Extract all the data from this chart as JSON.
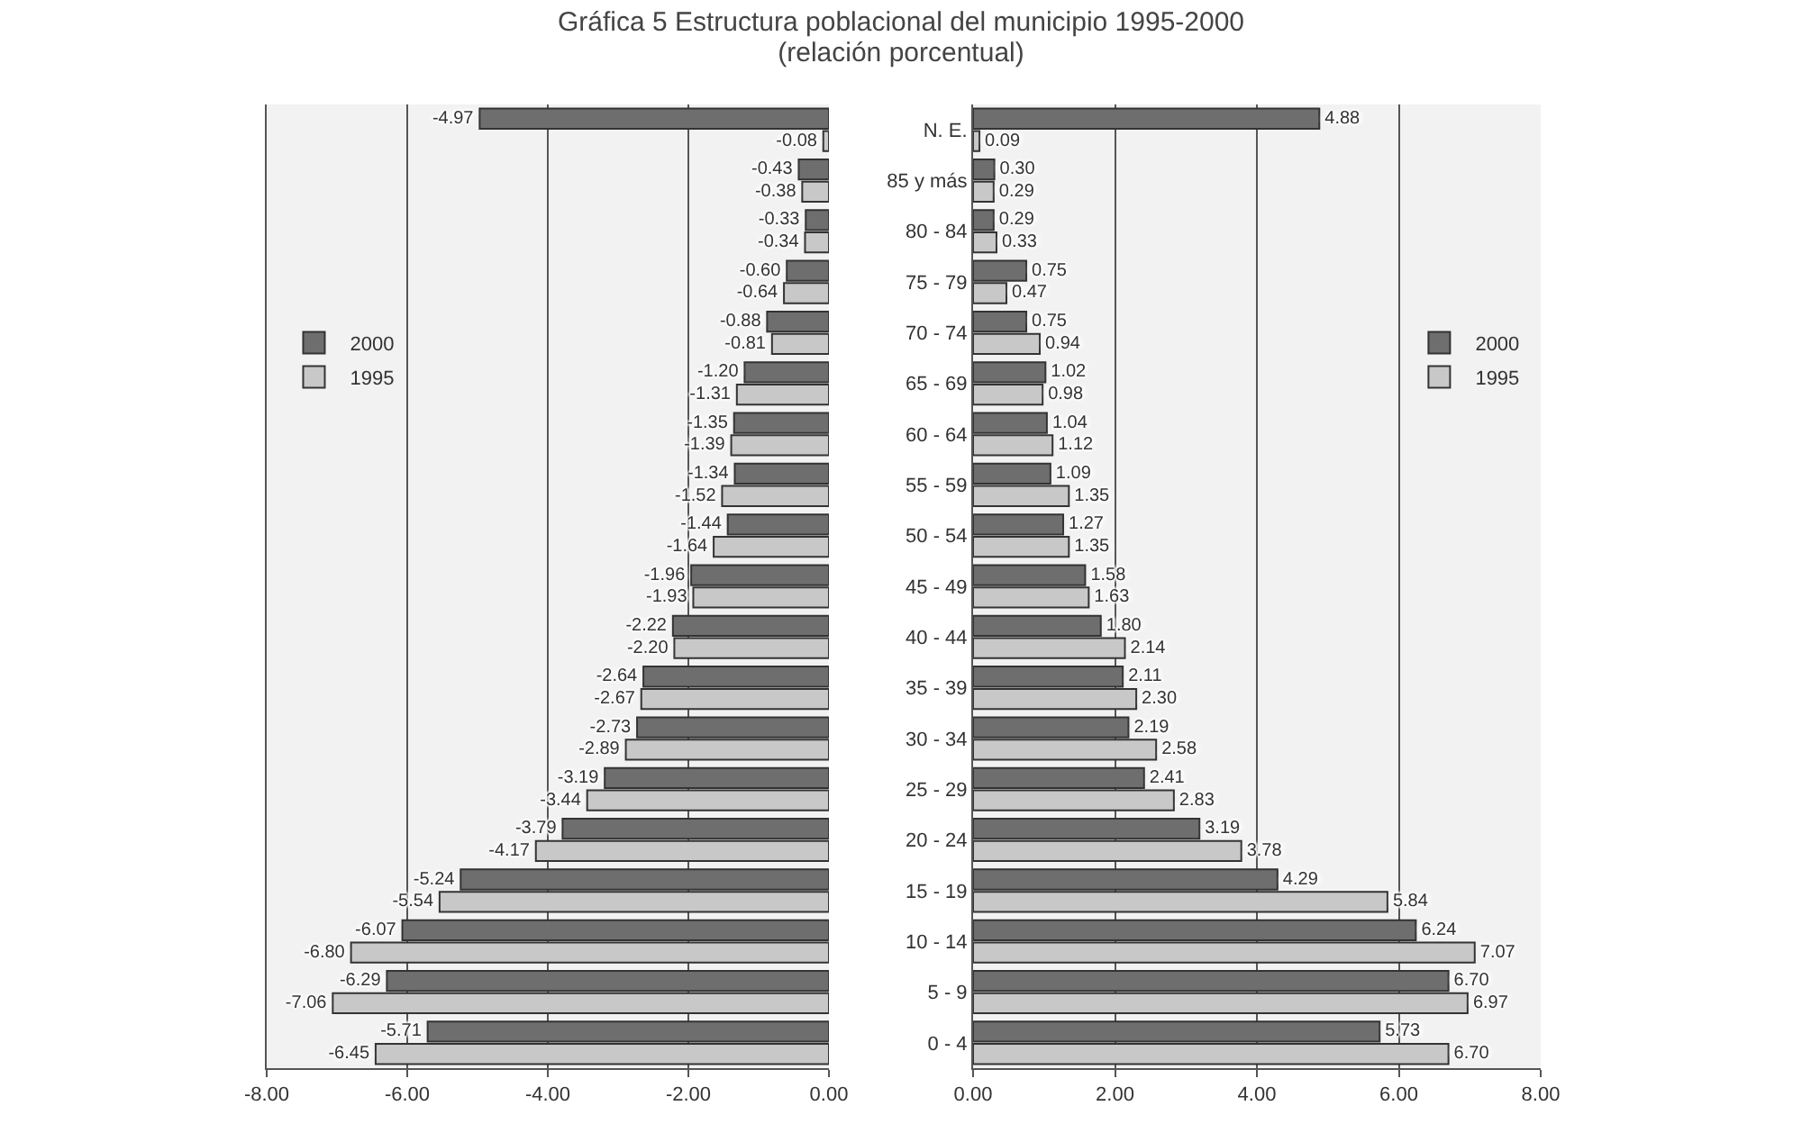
{
  "chart_data": [
    {
      "type": "bar",
      "title": "Gráfica 5 Estructura poblacional del municipio 1995-2000",
      "subtitle": "(relación porcentual)",
      "orientation": "horizontal",
      "categories": [
        null,
        null,
        null,
        null,
        null,
        null,
        null,
        null,
        null,
        null,
        null,
        null,
        null,
        null,
        null,
        null,
        null,
        null,
        null
      ],
      "grid": "x",
      "legend": "left",
      "xlim": [
        -8,
        0
      ],
      "xticks": [
        {
          "value": -8,
          "label": "-8.00"
        },
        {
          "value": -6,
          "label": "-6.00"
        },
        {
          "value": -4,
          "label": "-4.00"
        },
        {
          "value": -2,
          "label": "-2.00"
        },
        {
          "value": 0,
          "label": "0.00"
        }
      ],
      "series": [
        {
          "name": "2000",
          "color": "#6e6e6e",
          "values": [
            -4.97,
            -0.43,
            -0.33,
            -0.6,
            -0.88,
            -1.2,
            -1.35,
            -1.34,
            -1.44,
            -1.96,
            -2.22,
            -2.64,
            -2.73,
            -3.19,
            -3.79,
            -5.24,
            -6.07,
            -6.29,
            -5.71
          ],
          "value_labels": [
            "-4.97",
            "-0.43",
            "-0.33",
            "-0.60",
            "-0.88",
            "-1.20",
            "-1.35",
            "-1.34",
            "-1.44",
            "-1.96",
            "-2.22",
            "-2.64",
            "-2.73",
            "-3.19",
            "-3.79",
            "-5.24",
            "-6.07",
            "-6.29",
            "-5.71"
          ]
        },
        {
          "name": "1995",
          "color": "#c8c8c8",
          "values": [
            -0.08,
            -0.38,
            -0.34,
            -0.64,
            -0.81,
            -1.31,
            -1.39,
            -1.52,
            -1.64,
            -1.93,
            -2.2,
            -2.67,
            -2.89,
            -3.44,
            -4.17,
            -5.54,
            -6.8,
            -7.06,
            -6.45
          ],
          "value_labels": [
            "-0.08",
            "-0.38",
            "-0.34",
            "-0.64",
            "-0.81",
            "-1.31",
            "-1.39",
            "-1.52",
            "-1.64",
            "-1.93",
            "-2.20",
            "-2.67",
            "-2.89",
            "-3.44",
            "-4.17",
            "-5.54",
            "-6.80",
            "-7.06",
            "-6.45"
          ]
        }
      ]
    },
    {
      "type": "bar",
      "orientation": "horizontal",
      "categories": [
        "N. E.",
        "85 y más",
        "80 - 84",
        "75 - 79",
        "70 - 74",
        "65 - 69",
        "60 - 64",
        "55 - 59",
        "50 - 54",
        "45 - 49",
        "40 - 44",
        "35 - 39",
        "30 - 34",
        "25 - 29",
        "20 - 24",
        "15 - 19",
        "10 - 14",
        "5 - 9",
        "0 - 4"
      ],
      "grid": "x",
      "legend": "right",
      "xlim": [
        0,
        8
      ],
      "xticks": [
        {
          "value": 0,
          "label": "0.00"
        },
        {
          "value": 2,
          "label": "2.00"
        },
        {
          "value": 4,
          "label": "4.00"
        },
        {
          "value": 6,
          "label": "6.00"
        },
        {
          "value": 8,
          "label": "8.00"
        }
      ],
      "series": [
        {
          "name": "2000",
          "color": "#6e6e6e",
          "values": [
            4.88,
            0.3,
            0.29,
            0.75,
            0.75,
            1.02,
            1.04,
            1.09,
            1.27,
            1.58,
            1.8,
            2.11,
            2.19,
            2.41,
            3.19,
            4.29,
            6.24,
            6.7,
            5.73
          ],
          "value_labels": [
            "4.88",
            "0.30",
            "0.29",
            "0.75",
            "0.75",
            "1.02",
            "1.04",
            "1.09",
            "1.27",
            "1.58",
            "1.80",
            "2.11",
            "2.19",
            "2.41",
            "3.19",
            "4.29",
            "6.24",
            "6.70",
            "5.73"
          ]
        },
        {
          "name": "1995",
          "color": "#c8c8c8",
          "values": [
            0.09,
            0.29,
            0.33,
            0.47,
            0.94,
            0.98,
            1.12,
            1.35,
            1.35,
            1.63,
            2.14,
            2.3,
            2.58,
            2.83,
            3.78,
            5.84,
            7.07,
            6.97,
            6.7
          ],
          "value_labels": [
            "0.09",
            "0.29",
            "0.33",
            "0.47",
            "0.94",
            "0.98",
            "1.12",
            "1.35",
            "1.35",
            "1.63",
            "2.14",
            "2.30",
            "2.58",
            "2.83",
            "3.78",
            "5.84",
            "7.07",
            "6.97",
            "6.70"
          ]
        }
      ]
    }
  ]
}
